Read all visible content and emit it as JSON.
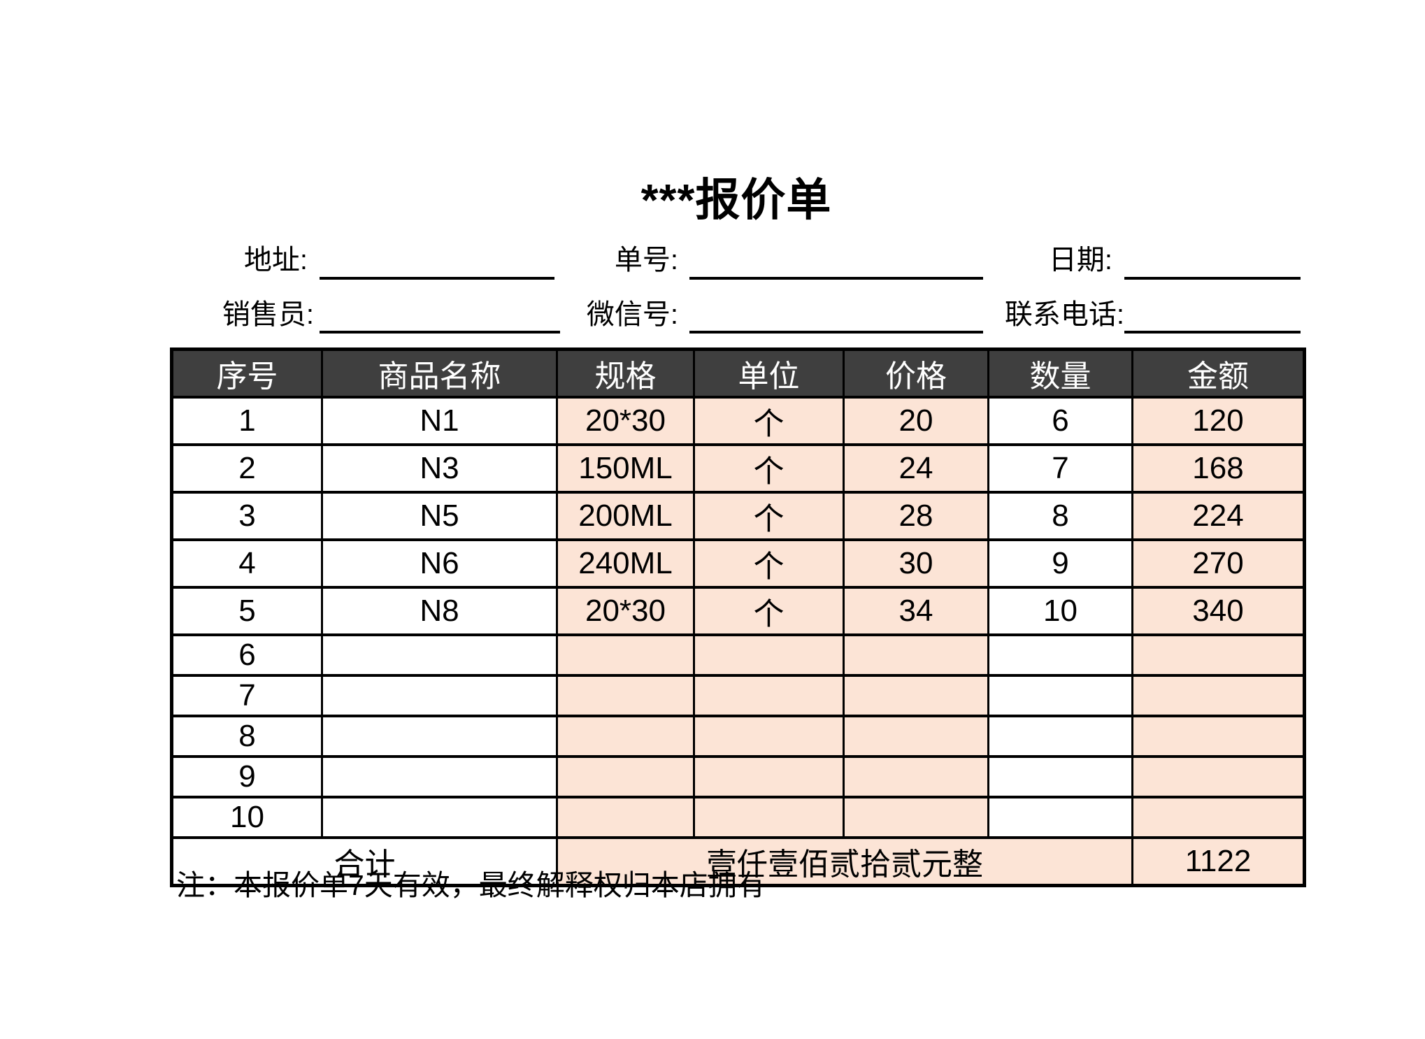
{
  "title": "***报价单",
  "info": {
    "row1": [
      {
        "label": "地址:",
        "value": ""
      },
      {
        "label": "单号:",
        "value": ""
      },
      {
        "label": "日期:",
        "value": ""
      }
    ],
    "row2": [
      {
        "label": "销售员:",
        "value": ""
      },
      {
        "label": "微信号:",
        "value": ""
      },
      {
        "label": "联系电话:",
        "value": ""
      }
    ]
  },
  "table": {
    "headers": [
      "序号",
      "商品名称",
      "规格",
      "单位",
      "价格",
      "数量",
      "金额"
    ],
    "rows": [
      [
        "1",
        "N1",
        "20*30",
        "个",
        "20",
        "6",
        "120"
      ],
      [
        "2",
        "N3",
        "150ML",
        "个",
        "24",
        "7",
        "168"
      ],
      [
        "3",
        "N5",
        "200ML",
        "个",
        "28",
        "8",
        "224"
      ],
      [
        "4",
        "N6",
        "240ML",
        "个",
        "30",
        "9",
        "270"
      ],
      [
        "5",
        "N8",
        "20*30",
        "个",
        "34",
        "10",
        "340"
      ],
      [
        "6",
        "",
        "",
        "",
        "",
        "",
        ""
      ],
      [
        "7",
        "",
        "",
        "",
        "",
        "",
        ""
      ],
      [
        "8",
        "",
        "",
        "",
        "",
        "",
        ""
      ],
      [
        "9",
        "",
        "",
        "",
        "",
        "",
        ""
      ],
      [
        "10",
        "",
        "",
        "",
        "",
        "",
        ""
      ]
    ],
    "highlight_columns": [
      2,
      3,
      4,
      6
    ],
    "total_row": {
      "label": "合计",
      "amount_text": "壹仟壹佰贰拾贰元整",
      "amount_value": "1122"
    }
  },
  "note": "注：本报价单7天有效，最终解释权归本店拥有",
  "colors": {
    "header_bg": "#3f3f3f",
    "header_text": "#ffffff",
    "accent_bg": "#fce4d6",
    "border": "#000000",
    "text": "#000000"
  }
}
